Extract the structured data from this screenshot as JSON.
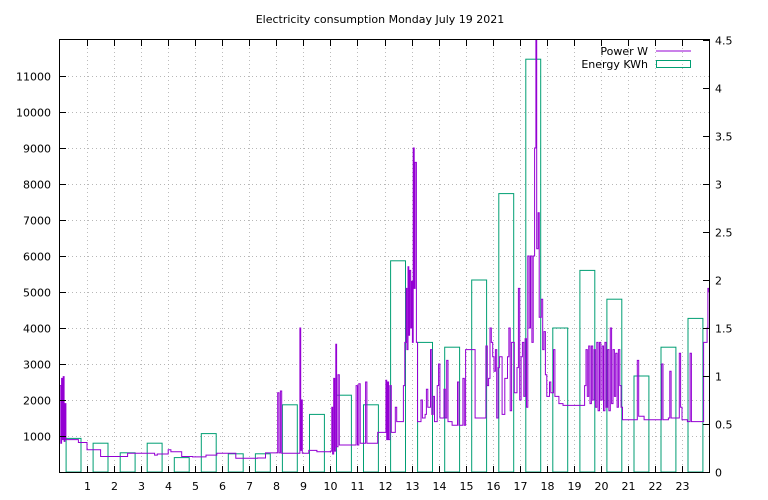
{
  "chart_data": {
    "type": "line",
    "title": "Electricity consumption Monday July 19 2021",
    "grid": true,
    "legend_position": "top-right",
    "x_axis": {
      "range": [
        0,
        24
      ],
      "ticks": [
        1,
        2,
        3,
        4,
        5,
        6,
        7,
        8,
        9,
        10,
        11,
        12,
        13,
        14,
        15,
        16,
        17,
        18,
        19,
        20,
        21,
        22,
        23
      ],
      "tick_labels": [
        "1",
        "2",
        "3",
        "4",
        "5",
        "6",
        "7",
        "8",
        "9",
        "10",
        "11",
        "12",
        "13",
        "14",
        "15",
        "16",
        "17",
        "18",
        "19",
        "20",
        "21",
        "22",
        "23"
      ]
    },
    "y_axis_left": {
      "range": [
        0,
        12000
      ],
      "ticks": [
        1000,
        2000,
        3000,
        4000,
        5000,
        6000,
        7000,
        8000,
        9000,
        10000,
        11000
      ],
      "tick_labels": [
        "1000",
        "2000",
        "3000",
        "4000",
        "5000",
        "6000",
        "7000",
        "8000",
        "9000",
        "10000",
        "11000"
      ]
    },
    "y_axis_right": {
      "range": [
        0,
        4.5
      ],
      "ticks": [
        0,
        0.5,
        1,
        1.5,
        2,
        2.5,
        3,
        3.5,
        4,
        4.5
      ],
      "tick_labels": [
        "0",
        "0.5",
        "1",
        "1.5",
        "2",
        "2.5",
        "3",
        "3.5",
        "4",
        "4.5"
      ]
    },
    "series": [
      {
        "name": "Power W",
        "type": "step-line",
        "axis": "left",
        "color": "#9400d3",
        "points": [
          [
            0.0,
            2400
          ],
          [
            0.03,
            800
          ],
          [
            0.06,
            2600
          ],
          [
            0.09,
            900
          ],
          [
            0.12,
            2650
          ],
          [
            0.15,
            850
          ],
          [
            0.18,
            1900
          ],
          [
            0.22,
            900
          ],
          [
            0.4,
            900
          ],
          [
            0.65,
            900
          ],
          [
            0.68,
            820
          ],
          [
            1.0,
            620
          ],
          [
            1.4,
            620
          ],
          [
            1.5,
            430
          ],
          [
            2.4,
            430
          ],
          [
            2.5,
            520
          ],
          [
            3.4,
            520
          ],
          [
            3.5,
            470
          ],
          [
            3.6,
            500
          ],
          [
            3.9,
            500
          ],
          [
            4.0,
            620
          ],
          [
            4.1,
            560
          ],
          [
            4.4,
            560
          ],
          [
            4.5,
            430
          ],
          [
            4.8,
            430
          ],
          [
            4.9,
            420
          ],
          [
            5.2,
            420
          ],
          [
            5.4,
            470
          ],
          [
            5.7,
            470
          ],
          [
            5.8,
            520
          ],
          [
            6.4,
            520
          ],
          [
            6.5,
            380
          ],
          [
            7.0,
            380
          ],
          [
            7.3,
            390
          ],
          [
            7.5,
            390
          ],
          [
            7.6,
            530
          ],
          [
            8.0,
            530
          ],
          [
            8.05,
            2200
          ],
          [
            8.1,
            530
          ],
          [
            8.15,
            2250
          ],
          [
            8.2,
            520
          ],
          [
            8.3,
            520
          ],
          [
            8.7,
            520
          ],
          [
            8.8,
            520
          ],
          [
            8.87,
            4000
          ],
          [
            8.9,
            600
          ],
          [
            8.93,
            2000
          ],
          [
            8.96,
            520
          ],
          [
            9.2,
            600
          ],
          [
            9.3,
            600
          ],
          [
            9.5,
            560
          ],
          [
            9.8,
            560
          ],
          [
            10.0,
            580
          ],
          [
            10.05,
            1800
          ],
          [
            10.08,
            500
          ],
          [
            10.12,
            2600
          ],
          [
            10.16,
            580
          ],
          [
            10.2,
            3550
          ],
          [
            10.23,
            700
          ],
          [
            10.28,
            2700
          ],
          [
            10.33,
            750
          ],
          [
            10.9,
            750
          ],
          [
            10.95,
            2400
          ],
          [
            11.0,
            750
          ],
          [
            11.05,
            2450
          ],
          [
            11.1,
            800
          ],
          [
            11.2,
            800
          ],
          [
            11.3,
            2500
          ],
          [
            11.35,
            800
          ],
          [
            11.6,
            800
          ],
          [
            11.75,
            1100
          ],
          [
            11.9,
            1100
          ],
          [
            12.0,
            1100
          ],
          [
            12.05,
            2550
          ],
          [
            12.08,
            900
          ],
          [
            12.12,
            2500
          ],
          [
            12.15,
            900
          ],
          [
            12.2,
            2400
          ],
          [
            12.25,
            1100
          ],
          [
            12.4,
            1800
          ],
          [
            12.45,
            1400
          ],
          [
            12.6,
            1400
          ],
          [
            12.7,
            2400
          ],
          [
            12.75,
            3600
          ],
          [
            12.8,
            5100
          ],
          [
            12.83,
            3400
          ],
          [
            12.87,
            5700
          ],
          [
            12.9,
            3800
          ],
          [
            12.93,
            5600
          ],
          [
            12.97,
            4000
          ],
          [
            13.0,
            5300
          ],
          [
            13.03,
            3600
          ],
          [
            13.06,
            9000
          ],
          [
            13.1,
            5100
          ],
          [
            13.13,
            8600
          ],
          [
            13.18,
            3600
          ],
          [
            13.22,
            1400
          ],
          [
            13.3,
            1400
          ],
          [
            13.35,
            2000
          ],
          [
            13.4,
            1500
          ],
          [
            13.5,
            1600
          ],
          [
            13.55,
            2300
          ],
          [
            13.6,
            1800
          ],
          [
            13.7,
            3400
          ],
          [
            13.75,
            1600
          ],
          [
            13.8,
            2100
          ],
          [
            13.85,
            1400
          ],
          [
            13.95,
            2400
          ],
          [
            14.0,
            3000
          ],
          [
            14.05,
            1500
          ],
          [
            14.2,
            2300
          ],
          [
            14.25,
            1500
          ],
          [
            14.3,
            3100
          ],
          [
            14.35,
            1400
          ],
          [
            14.5,
            1300
          ],
          [
            14.6,
            1300
          ],
          [
            14.7,
            2500
          ],
          [
            14.75,
            1300
          ],
          [
            14.9,
            2600
          ],
          [
            14.95,
            1300
          ],
          [
            15.0,
            3400
          ],
          [
            15.3,
            3400
          ],
          [
            15.35,
            1500
          ],
          [
            15.6,
            1500
          ],
          [
            15.75,
            3500
          ],
          [
            15.8,
            2400
          ],
          [
            15.85,
            2600
          ],
          [
            15.9,
            4000
          ],
          [
            15.95,
            3600
          ],
          [
            16.0,
            3200
          ],
          [
            16.05,
            2800
          ],
          [
            16.1,
            3400
          ],
          [
            16.15,
            1500
          ],
          [
            16.2,
            2900
          ],
          [
            16.25,
            3200
          ],
          [
            16.35,
            1600
          ],
          [
            16.45,
            2600
          ],
          [
            16.55,
            3200
          ],
          [
            16.6,
            4000
          ],
          [
            16.65,
            1700
          ],
          [
            16.7,
            3600
          ],
          [
            16.8,
            2200
          ],
          [
            16.9,
            2900
          ],
          [
            16.95,
            5100
          ],
          [
            17.0,
            2000
          ],
          [
            17.05,
            3200
          ],
          [
            17.1,
            3600
          ],
          [
            17.15,
            2100
          ],
          [
            17.2,
            3700
          ],
          [
            17.25,
            1800
          ],
          [
            17.3,
            6000
          ],
          [
            17.35,
            4000
          ],
          [
            17.4,
            6000
          ],
          [
            17.45,
            3600
          ],
          [
            17.5,
            6000
          ],
          [
            17.55,
            9000
          ],
          [
            17.6,
            12000
          ],
          [
            17.63,
            6200
          ],
          [
            17.68,
            7200
          ],
          [
            17.72,
            4300
          ],
          [
            17.8,
            4800
          ],
          [
            17.85,
            3400
          ],
          [
            17.9,
            3900
          ],
          [
            17.95,
            2700
          ],
          [
            18.0,
            2100
          ],
          [
            18.1,
            2500
          ],
          [
            18.15,
            2200
          ],
          [
            18.25,
            3400
          ],
          [
            18.3,
            2100
          ],
          [
            18.45,
            1900
          ],
          [
            18.6,
            1850
          ],
          [
            19.0,
            1850
          ],
          [
            19.3,
            1850
          ],
          [
            19.4,
            2400
          ],
          [
            19.45,
            3400
          ],
          [
            19.5,
            2100
          ],
          [
            19.55,
            3500
          ],
          [
            19.6,
            1900
          ],
          [
            19.65,
            3500
          ],
          [
            19.7,
            2000
          ],
          [
            19.75,
            3400
          ],
          [
            19.8,
            1800
          ],
          [
            19.85,
            3600
          ],
          [
            19.9,
            1700
          ],
          [
            19.95,
            3600
          ],
          [
            20.0,
            2000
          ],
          [
            20.05,
            3500
          ],
          [
            20.1,
            1700
          ],
          [
            20.15,
            3600
          ],
          [
            20.2,
            1800
          ],
          [
            20.25,
            3400
          ],
          [
            20.3,
            1700
          ],
          [
            20.35,
            4000
          ],
          [
            20.4,
            1900
          ],
          [
            20.45,
            3400
          ],
          [
            20.5,
            2100
          ],
          [
            20.55,
            3300
          ],
          [
            20.6,
            1800
          ],
          [
            20.65,
            3400
          ],
          [
            20.7,
            2400
          ],
          [
            20.75,
            1800
          ],
          [
            20.8,
            1450
          ],
          [
            21.0,
            1450
          ],
          [
            21.3,
            1450
          ],
          [
            21.35,
            3100
          ],
          [
            21.4,
            1550
          ],
          [
            21.5,
            1550
          ],
          [
            21.6,
            1450
          ],
          [
            22.0,
            1450
          ],
          [
            22.2,
            1450
          ],
          [
            22.25,
            3000
          ],
          [
            22.3,
            1450
          ],
          [
            22.5,
            1500
          ],
          [
            22.55,
            2800
          ],
          [
            22.6,
            1500
          ],
          [
            22.8,
            1500
          ],
          [
            22.9,
            3300
          ],
          [
            22.95,
            1800
          ],
          [
            23.0,
            1450
          ],
          [
            23.2,
            1400
          ],
          [
            23.3,
            3300
          ],
          [
            23.35,
            1400
          ],
          [
            23.6,
            1400
          ],
          [
            23.75,
            1400
          ],
          [
            23.8,
            3600
          ],
          [
            23.9,
            3600
          ],
          [
            23.93,
            4000
          ],
          [
            23.96,
            5100
          ],
          [
            24.0,
            5000
          ]
        ]
      },
      {
        "name": "Energy KWh",
        "type": "histogram-steps",
        "axis": "right",
        "color": "#009e73",
        "bars": [
          {
            "hour": 0,
            "kwh": 0.35
          },
          {
            "hour": 1,
            "kwh": 0.3
          },
          {
            "hour": 2,
            "kwh": 0.2
          },
          {
            "hour": 3,
            "kwh": 0.3
          },
          {
            "hour": 4,
            "kwh": 0.15
          },
          {
            "hour": 5,
            "kwh": 0.4
          },
          {
            "hour": 6,
            "kwh": 0.19
          },
          {
            "hour": 7,
            "kwh": 0.19
          },
          {
            "hour": 8,
            "kwh": 0.7
          },
          {
            "hour": 9,
            "kwh": 0.6
          },
          {
            "hour": 10,
            "kwh": 0.8
          },
          {
            "hour": 11,
            "kwh": 0.7
          },
          {
            "hour": 12,
            "kwh": 2.2
          },
          {
            "hour": 13,
            "kwh": 1.35
          },
          {
            "hour": 14,
            "kwh": 1.3
          },
          {
            "hour": 15,
            "kwh": 2.0
          },
          {
            "hour": 16,
            "kwh": 2.9
          },
          {
            "hour": 17,
            "kwh": 4.3
          },
          {
            "hour": 18,
            "kwh": 1.5
          },
          {
            "hour": 19,
            "kwh": 2.1
          },
          {
            "hour": 20,
            "kwh": 1.8
          },
          {
            "hour": 21,
            "kwh": 1.0
          },
          {
            "hour": 22,
            "kwh": 1.3
          },
          {
            "hour": 23,
            "kwh": 1.6
          }
        ]
      }
    ]
  }
}
